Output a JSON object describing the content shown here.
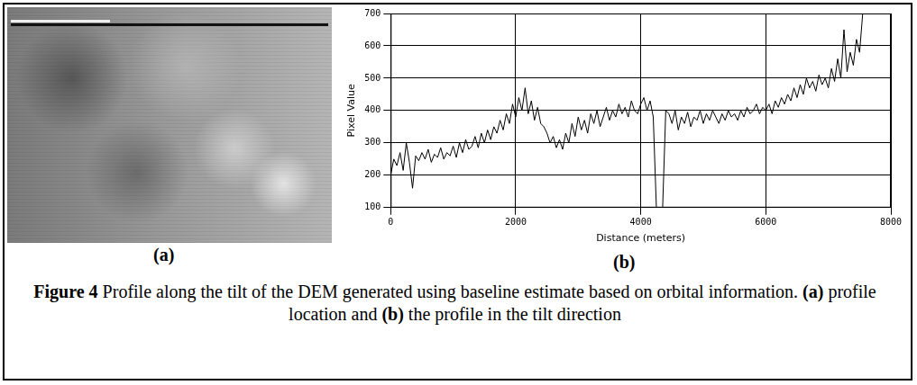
{
  "chart_data": {
    "type": "line",
    "xlabel": "Distance (meters)",
    "ylabel": "Pixel Value",
    "color": "#000000",
    "grid": true,
    "xlim": [
      0,
      8000
    ],
    "xticks": [
      0,
      2000,
      4000,
      6000,
      8000
    ],
    "ylim": [
      100,
      700
    ],
    "yticks": [
      100,
      200,
      300,
      400,
      500,
      600,
      700
    ],
    "x": [
      0,
      50,
      100,
      150,
      200,
      250,
      300,
      350,
      400,
      450,
      500,
      550,
      600,
      650,
      700,
      750,
      800,
      850,
      900,
      950,
      1000,
      1050,
      1100,
      1150,
      1200,
      1250,
      1300,
      1350,
      1400,
      1450,
      1500,
      1550,
      1600,
      1650,
      1700,
      1750,
      1800,
      1850,
      1900,
      1950,
      2000,
      2050,
      2100,
      2150,
      2200,
      2250,
      2300,
      2350,
      2400,
      2450,
      2500,
      2550,
      2600,
      2650,
      2700,
      2750,
      2800,
      2850,
      2900,
      2950,
      3000,
      3050,
      3100,
      3150,
      3200,
      3250,
      3300,
      3350,
      3400,
      3450,
      3500,
      3550,
      3600,
      3650,
      3700,
      3750,
      3800,
      3850,
      3900,
      3950,
      4000,
      4050,
      4100,
      4150,
      4200,
      4250,
      4300,
      4350,
      4400,
      4450,
      4500,
      4550,
      4600,
      4650,
      4700,
      4750,
      4800,
      4850,
      4900,
      4950,
      5000,
      5050,
      5100,
      5150,
      5200,
      5250,
      5300,
      5350,
      5400,
      5450,
      5500,
      5550,
      5600,
      5650,
      5700,
      5750,
      5800,
      5850,
      5900,
      5950,
      6000,
      6050,
      6100,
      6150,
      6200,
      6250,
      6300,
      6350,
      6400,
      6450,
      6500,
      6550,
      6600,
      6650,
      6700,
      6750,
      6800,
      6850,
      6900,
      6950,
      7000,
      7050,
      7100,
      7150,
      7200,
      7250,
      7300,
      7350,
      7400,
      7450,
      7500,
      7550
    ],
    "values": [
      200,
      250,
      230,
      270,
      215,
      300,
      240,
      160,
      260,
      245,
      270,
      250,
      280,
      240,
      265,
      255,
      285,
      250,
      270,
      260,
      290,
      255,
      300,
      270,
      310,
      280,
      290,
      320,
      285,
      330,
      300,
      340,
      310,
      350,
      330,
      370,
      340,
      390,
      360,
      420,
      380,
      440,
      400,
      470,
      390,
      430,
      370,
      410,
      360,
      350,
      330,
      300,
      320,
      285,
      310,
      280,
      330,
      300,
      360,
      320,
      380,
      340,
      370,
      330,
      390,
      360,
      400,
      350,
      380,
      410,
      370,
      400,
      380,
      420,
      390,
      410,
      380,
      430,
      400,
      390,
      420,
      440,
      400,
      430,
      380,
      100,
      100,
      100,
      400,
      390,
      360,
      400,
      340,
      380,
      360,
      395,
      350,
      380,
      370,
      400,
      360,
      390,
      370,
      400,
      380,
      360,
      390,
      370,
      400,
      380,
      390,
      370,
      400,
      380,
      410,
      390,
      400,
      420,
      390,
      410,
      400,
      420,
      390,
      430,
      410,
      440,
      420,
      450,
      430,
      470,
      440,
      480,
      450,
      500,
      470,
      490,
      460,
      510,
      480,
      500,
      470,
      530,
      490,
      560,
      500,
      650,
      520,
      580,
      540,
      620,
      580,
      700
    ]
  },
  "panel_labels": [
    "(a)",
    "(b)"
  ],
  "caption": {
    "label": "Figure 4",
    "text": "Profile along the tilt of the DEM generated using baseline estimate based on orbital information. (a) profile location and (b) the profile in the tilt direction"
  }
}
